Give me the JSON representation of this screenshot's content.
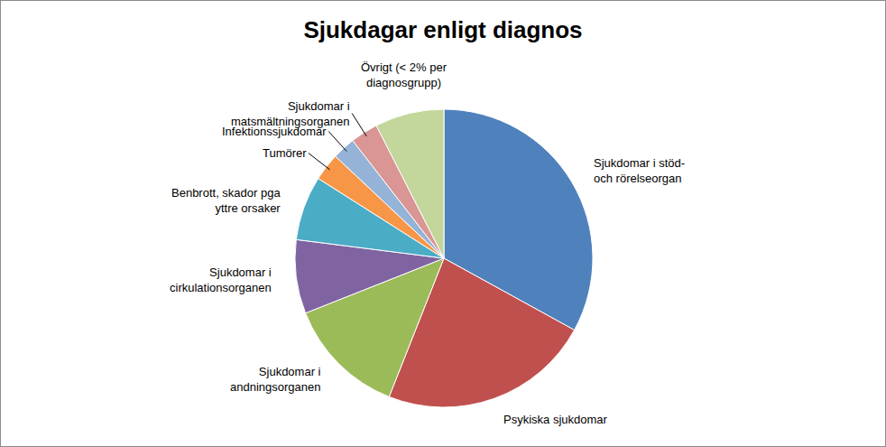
{
  "chart_data": {
    "type": "pie",
    "title": "Sjukdagar enligt diagnos",
    "categories": [
      "Sjukdomar i stöd- och rörelseorgan",
      "Psykiska sjukdomar",
      "Sjukdomar i andningsorganen",
      "Sjukdomar i cirkulationsorganen",
      "Benbrott, skador pga yttre orsaker",
      "Tumörer",
      "Infektionssjukdomar",
      "Sjukdomar i matsmältningsorganen",
      "Övrigt (< 2% per diagnosgrupp)"
    ],
    "values": [
      33,
      23,
      13,
      8,
      7,
      3,
      2.5,
      3,
      7.5
    ],
    "colors": [
      "#4f81bd",
      "#c0504d",
      "#9bbb59",
      "#8064a2",
      "#4bacc6",
      "#f79646",
      "#95b3d7",
      "#d99694",
      "#c3d69b"
    ]
  }
}
